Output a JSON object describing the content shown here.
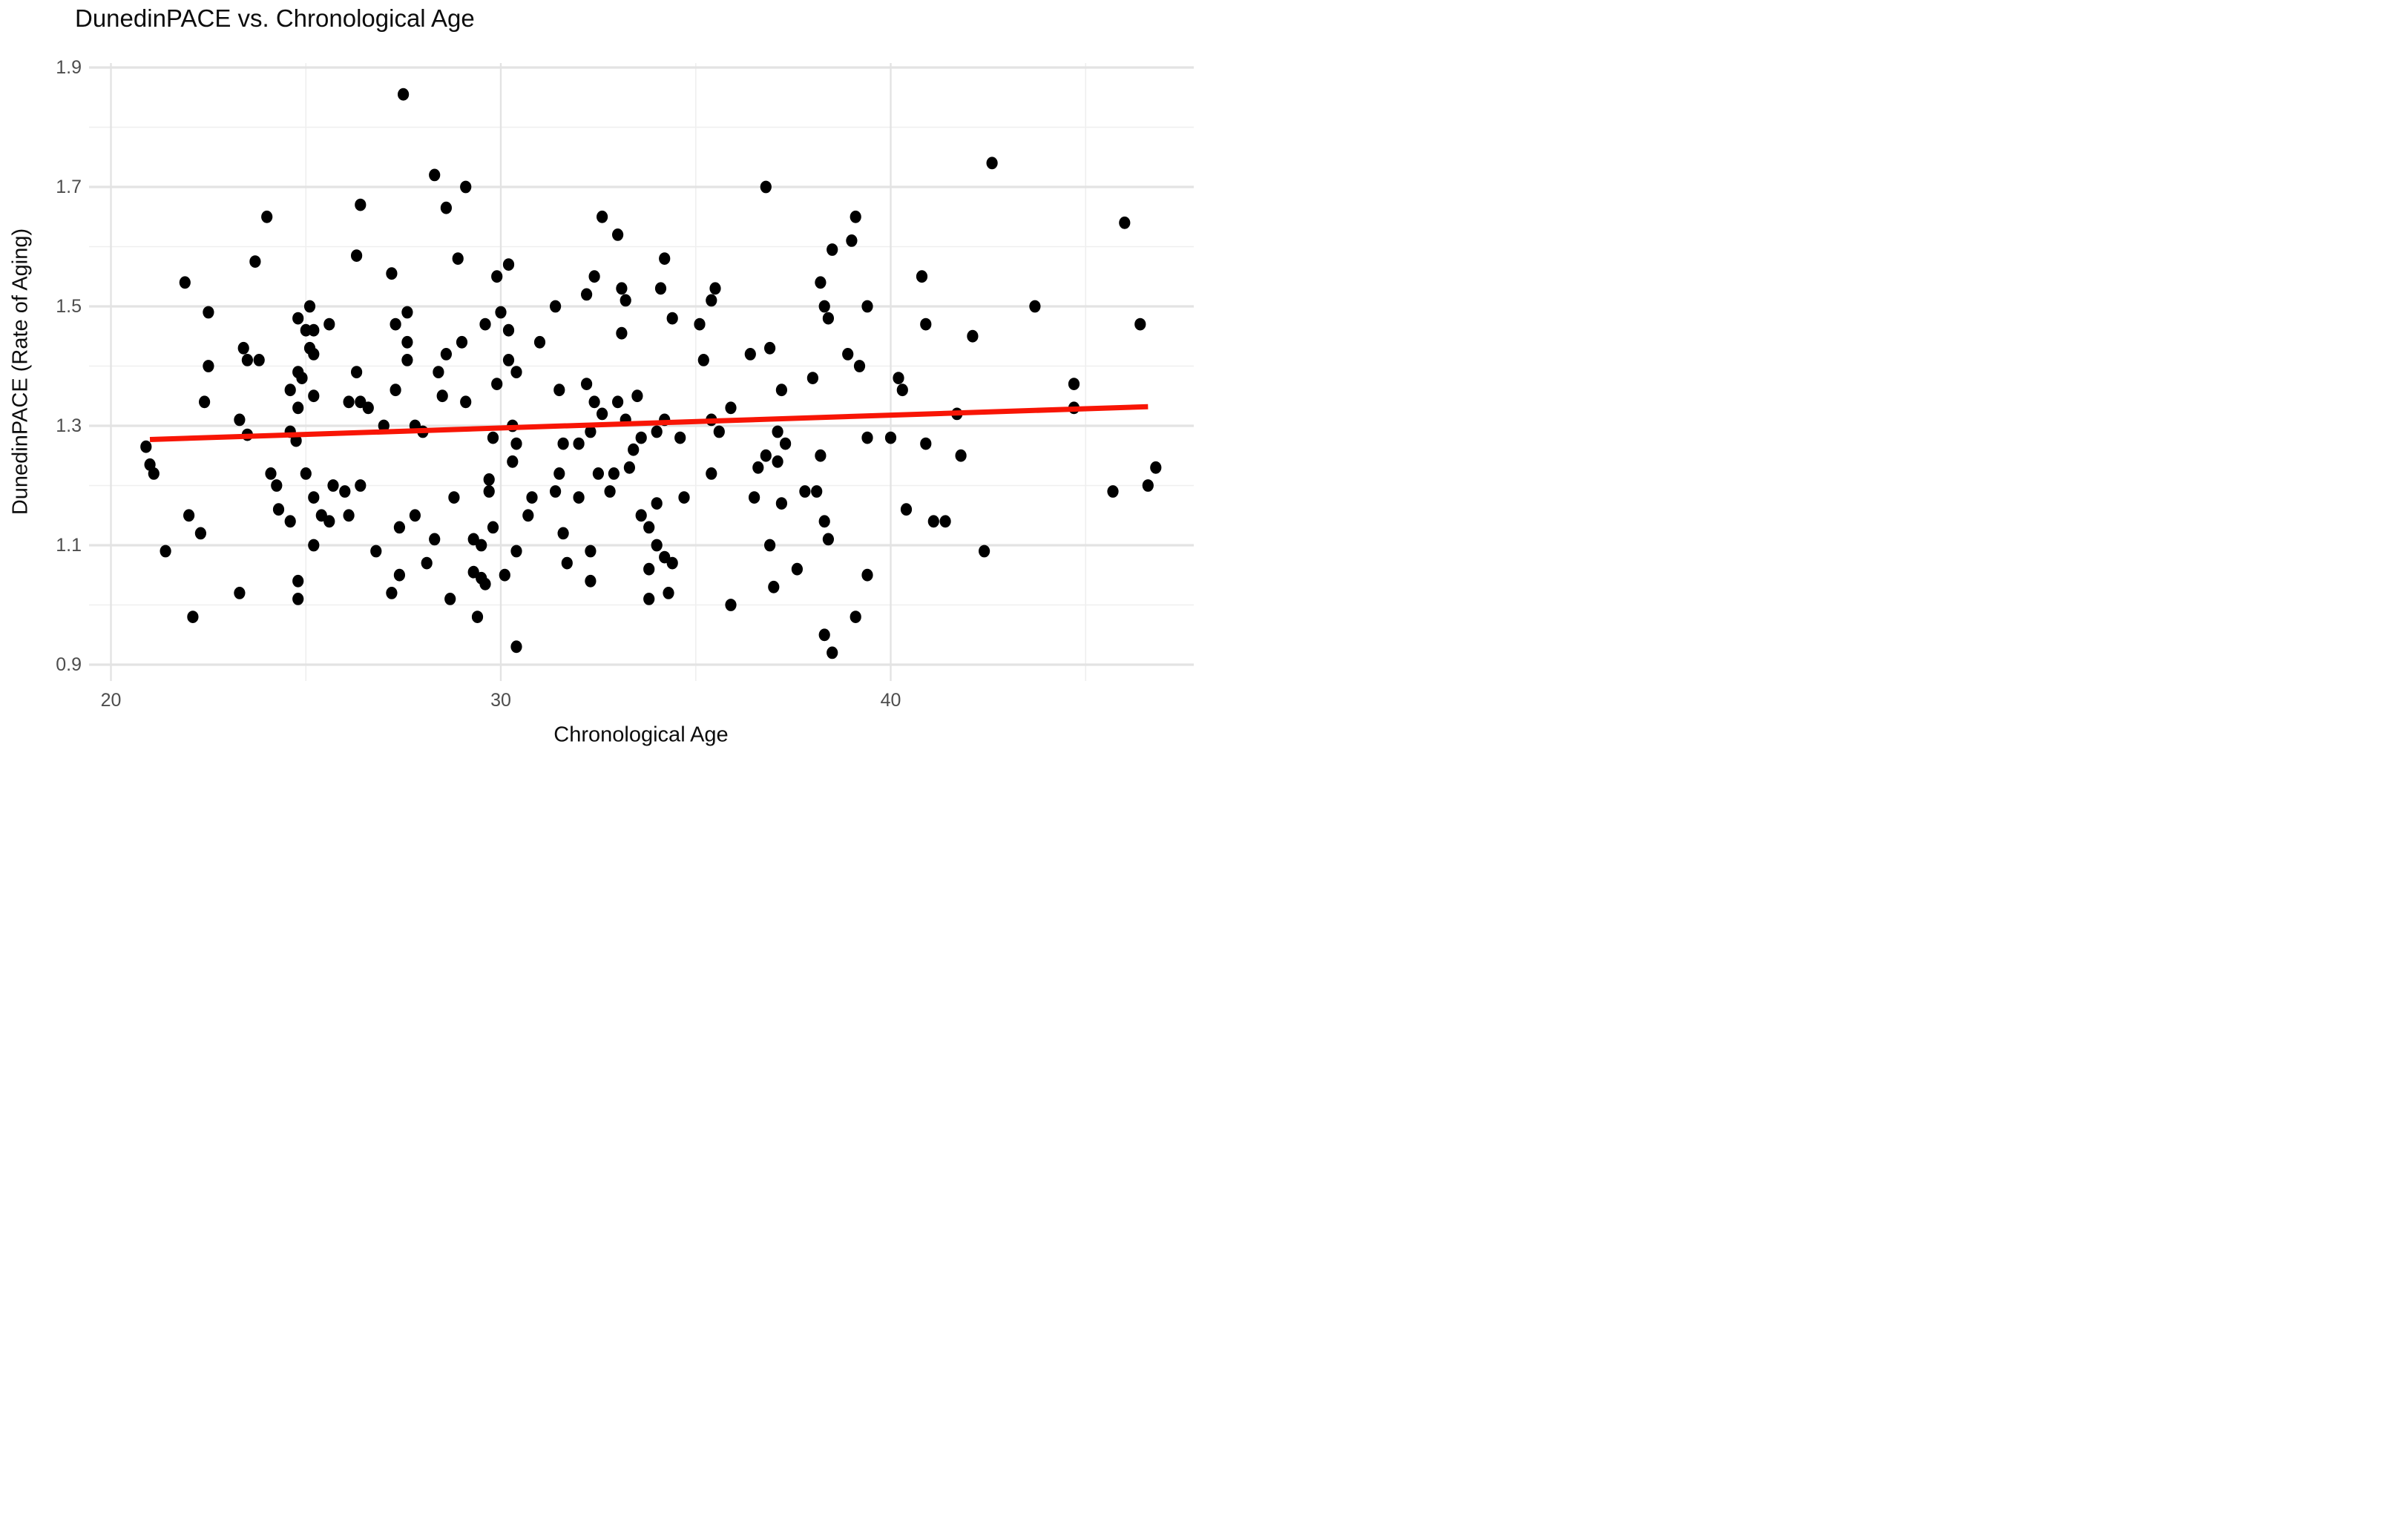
{
  "chart_data": {
    "type": "scatter",
    "title": "DunedinPACE vs. Chronological Age",
    "xlabel": "Chronological Age",
    "ylabel": "DunedinPACE (Rate of Aging)",
    "xlim": [
      19.4,
      47.8
    ],
    "ylim": [
      0.877,
      1.908
    ],
    "x_major_ticks": [
      20,
      30,
      40
    ],
    "x_minor_ticks": [
      25,
      35,
      45
    ],
    "y_major_ticks": [
      1.9,
      1.7,
      1.5,
      1.3,
      1.1,
      0.9
    ],
    "y_minor_ticks": [
      1.8,
      1.6,
      1.4,
      1.2,
      1.0
    ],
    "x_tick_labels": [
      "20",
      "30",
      "40"
    ],
    "y_tick_labels": [
      "1.9",
      "1.7",
      "1.5",
      "1.3",
      "1.1",
      "0.9"
    ],
    "grid": true,
    "legend": false,
    "point_color": "#000000",
    "background_color": "#ffffff",
    "major_grid_color": "#e3e3e3",
    "minor_grid_color": "#efefef",
    "tick_label_color": "#4d4d4d",
    "trend_line": {
      "type": "linear",
      "color": "#f81505",
      "x1": 21.0,
      "y1": 1.277,
      "x2": 46.6,
      "y2": 1.332
    },
    "points": [
      [
        27.5,
        1.855
      ],
      [
        28.3,
        1.72
      ],
      [
        42.6,
        1.74
      ],
      [
        29.1,
        1.7
      ],
      [
        36.8,
        1.7
      ],
      [
        26.4,
        1.67
      ],
      [
        28.6,
        1.665
      ],
      [
        24.0,
        1.65
      ],
      [
        32.6,
        1.65
      ],
      [
        39.1,
        1.65
      ],
      [
        46.0,
        1.64
      ],
      [
        33.0,
        1.62
      ],
      [
        39.0,
        1.61
      ],
      [
        38.5,
        1.595
      ],
      [
        26.3,
        1.585
      ],
      [
        28.9,
        1.58
      ],
      [
        34.2,
        1.58
      ],
      [
        23.7,
        1.575
      ],
      [
        30.2,
        1.57
      ],
      [
        27.2,
        1.555
      ],
      [
        29.9,
        1.55
      ],
      [
        32.4,
        1.55
      ],
      [
        40.8,
        1.55
      ],
      [
        21.9,
        1.54
      ],
      [
        38.2,
        1.54
      ],
      [
        33.1,
        1.53
      ],
      [
        34.1,
        1.53
      ],
      [
        35.5,
        1.53
      ],
      [
        32.2,
        1.52
      ],
      [
        33.2,
        1.51
      ],
      [
        35.4,
        1.51
      ],
      [
        31.4,
        1.5
      ],
      [
        25.1,
        1.5
      ],
      [
        38.3,
        1.5
      ],
      [
        39.4,
        1.5
      ],
      [
        43.7,
        1.5
      ],
      [
        22.5,
        1.49
      ],
      [
        27.6,
        1.49
      ],
      [
        30.0,
        1.49
      ],
      [
        24.8,
        1.48
      ],
      [
        34.4,
        1.48
      ],
      [
        38.4,
        1.48
      ],
      [
        25.6,
        1.47
      ],
      [
        27.3,
        1.47
      ],
      [
        29.6,
        1.47
      ],
      [
        35.1,
        1.47
      ],
      [
        40.9,
        1.47
      ],
      [
        46.4,
        1.47
      ],
      [
        25.0,
        1.46
      ],
      [
        25.2,
        1.46
      ],
      [
        30.2,
        1.46
      ],
      [
        33.1,
        1.455
      ],
      [
        27.6,
        1.44
      ],
      [
        29.0,
        1.44
      ],
      [
        31.0,
        1.44
      ],
      [
        42.1,
        1.45
      ],
      [
        23.4,
        1.43
      ],
      [
        25.1,
        1.43
      ],
      [
        36.9,
        1.43
      ],
      [
        25.2,
        1.42
      ],
      [
        28.6,
        1.42
      ],
      [
        36.4,
        1.42
      ],
      [
        38.9,
        1.42
      ],
      [
        23.5,
        1.41
      ],
      [
        23.8,
        1.41
      ],
      [
        27.6,
        1.41
      ],
      [
        30.2,
        1.41
      ],
      [
        35.2,
        1.41
      ],
      [
        22.5,
        1.4
      ],
      [
        39.2,
        1.4
      ],
      [
        24.8,
        1.39
      ],
      [
        26.3,
        1.39
      ],
      [
        28.4,
        1.39
      ],
      [
        30.4,
        1.39
      ],
      [
        24.9,
        1.38
      ],
      [
        40.2,
        1.38
      ],
      [
        38.0,
        1.38
      ],
      [
        29.9,
        1.37
      ],
      [
        32.2,
        1.37
      ],
      [
        44.7,
        1.37
      ],
      [
        24.6,
        1.36
      ],
      [
        27.3,
        1.36
      ],
      [
        31.5,
        1.36
      ],
      [
        40.3,
        1.36
      ],
      [
        37.2,
        1.36
      ],
      [
        25.2,
        1.35
      ],
      [
        28.5,
        1.35
      ],
      [
        33.5,
        1.35
      ],
      [
        26.1,
        1.34
      ],
      [
        26.4,
        1.34
      ],
      [
        29.1,
        1.34
      ],
      [
        32.4,
        1.34
      ],
      [
        33.0,
        1.34
      ],
      [
        22.4,
        1.34
      ],
      [
        24.8,
        1.33
      ],
      [
        26.6,
        1.33
      ],
      [
        44.7,
        1.33
      ],
      [
        35.9,
        1.33
      ],
      [
        23.3,
        1.31
      ],
      [
        32.6,
        1.32
      ],
      [
        41.7,
        1.32
      ],
      [
        33.2,
        1.31
      ],
      [
        34.2,
        1.31
      ],
      [
        35.4,
        1.31
      ],
      [
        23.5,
        1.285
      ],
      [
        24.6,
        1.29
      ],
      [
        27.0,
        1.3
      ],
      [
        27.8,
        1.3
      ],
      [
        30.3,
        1.3
      ],
      [
        28.0,
        1.29
      ],
      [
        32.3,
        1.29
      ],
      [
        34.0,
        1.29
      ],
      [
        35.6,
        1.29
      ],
      [
        37.1,
        1.29
      ],
      [
        29.8,
        1.28
      ],
      [
        33.6,
        1.28
      ],
      [
        34.6,
        1.28
      ],
      [
        39.4,
        1.28
      ],
      [
        40.0,
        1.28
      ],
      [
        24.75,
        1.275
      ],
      [
        30.4,
        1.27
      ],
      [
        31.6,
        1.27
      ],
      [
        32.0,
        1.27
      ],
      [
        37.3,
        1.27
      ],
      [
        40.9,
        1.27
      ],
      [
        20.9,
        1.265
      ],
      [
        33.4,
        1.26
      ],
      [
        36.8,
        1.25
      ],
      [
        41.8,
        1.25
      ],
      [
        38.2,
        1.25
      ],
      [
        37.1,
        1.24
      ],
      [
        21.0,
        1.235
      ],
      [
        24.1,
        1.22
      ],
      [
        25.0,
        1.22
      ],
      [
        30.3,
        1.24
      ],
      [
        33.3,
        1.23
      ],
      [
        36.6,
        1.23
      ],
      [
        46.8,
        1.23
      ],
      [
        21.1,
        1.22
      ],
      [
        24.25,
        1.2
      ],
      [
        29.7,
        1.21
      ],
      [
        31.5,
        1.22
      ],
      [
        32.5,
        1.22
      ],
      [
        32.9,
        1.22
      ],
      [
        35.4,
        1.22
      ],
      [
        25.7,
        1.2
      ],
      [
        26.4,
        1.2
      ],
      [
        29.7,
        1.19
      ],
      [
        46.6,
        1.2
      ],
      [
        26.0,
        1.19
      ],
      [
        31.4,
        1.19
      ],
      [
        32.8,
        1.19
      ],
      [
        37.8,
        1.19
      ],
      [
        38.1,
        1.19
      ],
      [
        45.7,
        1.19
      ],
      [
        24.3,
        1.16
      ],
      [
        25.2,
        1.18
      ],
      [
        28.8,
        1.18
      ],
      [
        30.8,
        1.18
      ],
      [
        32.0,
        1.18
      ],
      [
        34.7,
        1.18
      ],
      [
        36.5,
        1.18
      ],
      [
        34.0,
        1.17
      ],
      [
        37.2,
        1.17
      ],
      [
        22.0,
        1.15
      ],
      [
        40.4,
        1.16
      ],
      [
        25.4,
        1.15
      ],
      [
        26.1,
        1.15
      ],
      [
        27.8,
        1.15
      ],
      [
        30.7,
        1.15
      ],
      [
        33.6,
        1.15
      ],
      [
        24.6,
        1.14
      ],
      [
        25.6,
        1.14
      ],
      [
        38.3,
        1.14
      ],
      [
        41.1,
        1.14
      ],
      [
        41.4,
        1.14
      ],
      [
        27.4,
        1.13
      ],
      [
        29.8,
        1.13
      ],
      [
        33.8,
        1.13
      ],
      [
        22.3,
        1.12
      ],
      [
        31.6,
        1.12
      ],
      [
        28.3,
        1.11
      ],
      [
        29.3,
        1.11
      ],
      [
        38.4,
        1.11
      ],
      [
        25.2,
        1.1
      ],
      [
        29.5,
        1.1
      ],
      [
        34.0,
        1.1
      ],
      [
        36.9,
        1.1
      ],
      [
        21.4,
        1.09
      ],
      [
        26.8,
        1.09
      ],
      [
        30.4,
        1.09
      ],
      [
        32.3,
        1.09
      ],
      [
        42.4,
        1.09
      ],
      [
        34.2,
        1.08
      ],
      [
        28.1,
        1.07
      ],
      [
        31.7,
        1.07
      ],
      [
        34.4,
        1.07
      ],
      [
        33.8,
        1.06
      ],
      [
        37.6,
        1.06
      ],
      [
        29.3,
        1.055
      ],
      [
        27.4,
        1.05
      ],
      [
        30.1,
        1.05
      ],
      [
        39.4,
        1.05
      ],
      [
        29.5,
        1.045
      ],
      [
        24.8,
        1.04
      ],
      [
        32.3,
        1.04
      ],
      [
        29.6,
        1.035
      ],
      [
        37.0,
        1.03
      ],
      [
        23.3,
        1.02
      ],
      [
        27.2,
        1.02
      ],
      [
        34.3,
        1.02
      ],
      [
        24.8,
        1.01
      ],
      [
        33.8,
        1.01
      ],
      [
        28.7,
        1.01
      ],
      [
        35.9,
        1.0
      ],
      [
        29.4,
        0.98
      ],
      [
        22.1,
        0.98
      ],
      [
        39.1,
        0.98
      ],
      [
        38.3,
        0.95
      ],
      [
        30.4,
        0.93
      ],
      [
        38.5,
        0.92
      ]
    ]
  }
}
